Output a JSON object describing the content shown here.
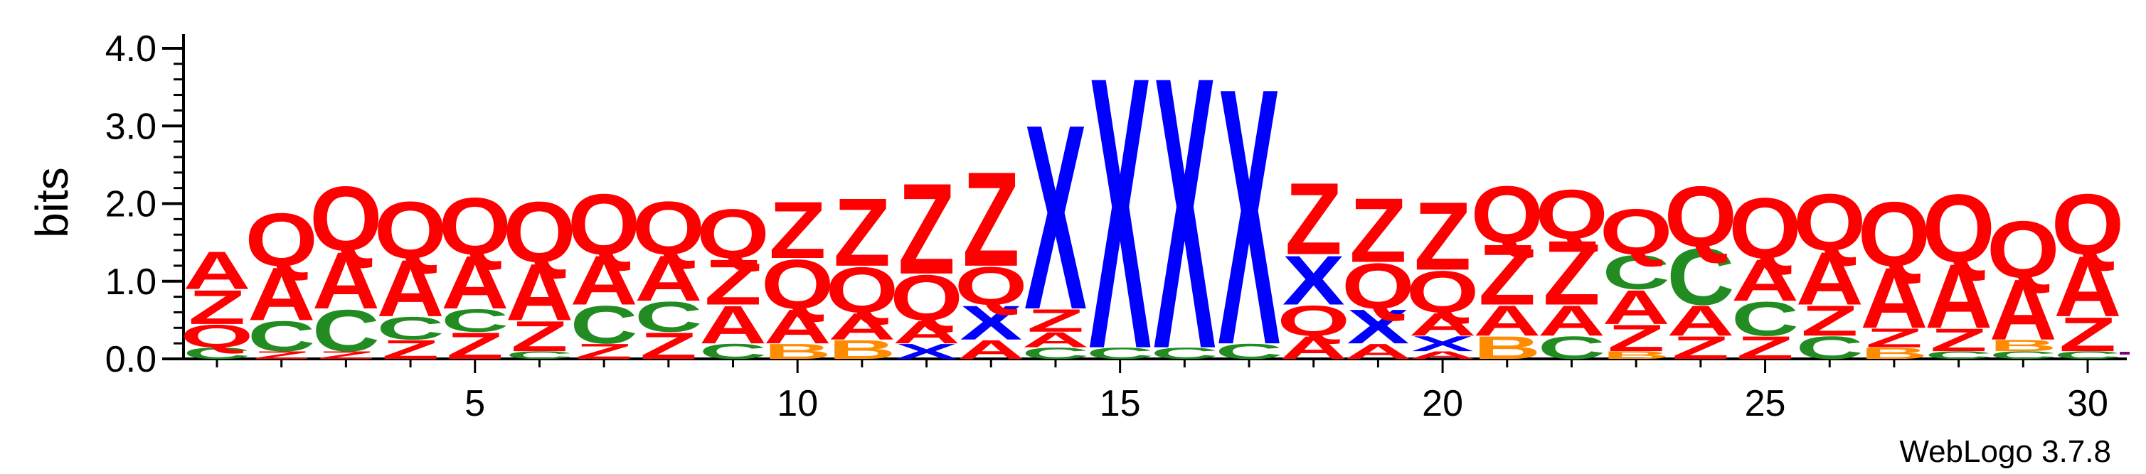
{
  "chart_data": {
    "type": "sequence-logo",
    "ylabel": "bits",
    "ylim": [
      0,
      4.0
    ],
    "y_ticks": [
      "0.0",
      "1.0",
      "2.0",
      "3.0",
      "4.0"
    ],
    "x_ticks": [
      5,
      10,
      15,
      20,
      25,
      30
    ],
    "positions": [
      1,
      30
    ],
    "footer": "WebLogo 3.7.8",
    "colors": {
      "A": "#ff0000",
      "Q": "#ff0000",
      "Z": "#ff0000",
      "C": "#228b22",
      "X": "#0000ff",
      "B": "#ff8c00",
      "other": "#800080"
    },
    "stacks": [
      {
        "pos": 1,
        "letters": [
          [
            "C",
            0.15
          ],
          [
            "Q",
            0.3
          ],
          [
            "Z",
            0.45
          ],
          [
            "A",
            0.5
          ]
        ]
      },
      {
        "pos": 2,
        "letters": [
          [
            "Z",
            0.1
          ],
          [
            "C",
            0.4
          ],
          [
            "A",
            0.7
          ],
          [
            "Q",
            0.7
          ]
        ]
      },
      {
        "pos": 3,
        "letters": [
          [
            "Z",
            0.1
          ],
          [
            "C",
            0.55
          ],
          [
            "A",
            0.75
          ],
          [
            "Q",
            0.85
          ]
        ]
      },
      {
        "pos": 4,
        "letters": [
          [
            "Z",
            0.25
          ],
          [
            "C",
            0.3
          ],
          [
            "A",
            0.75
          ],
          [
            "Q",
            0.75
          ]
        ]
      },
      {
        "pos": 5,
        "letters": [
          [
            "Z",
            0.35
          ],
          [
            "C",
            0.3
          ],
          [
            "A",
            0.7
          ],
          [
            "Q",
            0.75
          ]
        ]
      },
      {
        "pos": 6,
        "letters": [
          [
            "C",
            0.1
          ],
          [
            "Z",
            0.4
          ],
          [
            "A",
            0.75
          ],
          [
            "Q",
            0.8
          ]
        ]
      },
      {
        "pos": 7,
        "letters": [
          [
            "Z",
            0.2
          ],
          [
            "C",
            0.5
          ],
          [
            "A",
            0.65
          ],
          [
            "Q",
            0.8
          ]
        ]
      },
      {
        "pos": 8,
        "letters": [
          [
            "Z",
            0.35
          ],
          [
            "C",
            0.4
          ],
          [
            "A",
            0.6
          ],
          [
            "Q",
            0.7
          ]
        ]
      },
      {
        "pos": 9,
        "letters": [
          [
            "C",
            0.2
          ],
          [
            "A",
            0.5
          ],
          [
            "Z",
            0.6
          ],
          [
            "Q",
            0.65
          ]
        ]
      },
      {
        "pos": 10,
        "letters": [
          [
            "B",
            0.2
          ],
          [
            "A",
            0.45
          ],
          [
            "Q",
            0.65
          ],
          [
            "Z",
            0.75
          ]
        ]
      },
      {
        "pos": 11,
        "letters": [
          [
            "B",
            0.25
          ],
          [
            "A",
            0.35
          ],
          [
            "Q",
            0.6
          ],
          [
            "Z",
            0.9
          ]
        ]
      },
      {
        "pos": 12,
        "letters": [
          [
            "X",
            0.2
          ],
          [
            "A",
            0.3
          ],
          [
            "Q",
            0.6
          ],
          [
            "Z",
            1.2
          ]
        ]
      },
      {
        "pos": 13,
        "letters": [
          [
            "A",
            0.25
          ],
          [
            "X",
            0.45
          ],
          [
            "Q",
            0.5
          ],
          [
            "Z",
            1.25
          ]
        ]
      },
      {
        "pos": 14,
        "letters": [
          [
            "C",
            0.15
          ],
          [
            "A",
            0.2
          ],
          [
            "Z",
            0.3
          ],
          [
            "X",
            2.45
          ]
        ]
      },
      {
        "pos": 15,
        "letters": [
          [
            "C",
            0.15
          ],
          [
            "X",
            3.6
          ]
        ]
      },
      {
        "pos": 16,
        "letters": [
          [
            "C",
            0.15
          ],
          [
            "X",
            3.6
          ]
        ]
      },
      {
        "pos": 17,
        "letters": [
          [
            "C",
            0.2
          ],
          [
            "X",
            3.4
          ]
        ]
      },
      {
        "pos": 18,
        "letters": [
          [
            "A",
            0.3
          ],
          [
            "Q",
            0.4
          ],
          [
            "X",
            0.65
          ],
          [
            "Z",
            0.95
          ]
        ]
      },
      {
        "pos": 19,
        "letters": [
          [
            "A",
            0.2
          ],
          [
            "X",
            0.45
          ],
          [
            "Q",
            0.6
          ],
          [
            "Z",
            0.85
          ]
        ]
      },
      {
        "pos": 20,
        "letters": [
          [
            "A",
            0.1
          ],
          [
            "X",
            0.2
          ],
          [
            "A",
            0.3
          ],
          [
            "Q",
            0.55
          ],
          [
            "Z",
            0.9
          ]
        ]
      },
      {
        "pos": 21,
        "letters": [
          [
            "B",
            0.3
          ],
          [
            "A",
            0.4
          ],
          [
            "Z",
            0.8
          ],
          [
            "Q",
            0.75
          ]
        ]
      },
      {
        "pos": 22,
        "letters": [
          [
            "C",
            0.3
          ],
          [
            "A",
            0.4
          ],
          [
            "Z",
            0.85
          ],
          [
            "Q",
            0.65
          ]
        ]
      },
      {
        "pos": 23,
        "letters": [
          [
            "B",
            0.1
          ],
          [
            "Z",
            0.35
          ],
          [
            "A",
            0.45
          ],
          [
            "C",
            0.45
          ],
          [
            "Q",
            0.6
          ]
        ]
      },
      {
        "pos": 24,
        "letters": [
          [
            "Z",
            0.3
          ],
          [
            "A",
            0.4
          ],
          [
            "C",
            0.75
          ],
          [
            "Q",
            0.8
          ]
        ]
      },
      {
        "pos": 25,
        "letters": [
          [
            "Z",
            0.3
          ],
          [
            "C",
            0.45
          ],
          [
            "A",
            0.55
          ],
          [
            "Q",
            0.8
          ]
        ]
      },
      {
        "pos": 26,
        "letters": [
          [
            "C",
            0.3
          ],
          [
            "Z",
            0.4
          ],
          [
            "A",
            0.7
          ],
          [
            "Q",
            0.75
          ]
        ]
      },
      {
        "pos": 27,
        "letters": [
          [
            "B",
            0.15
          ],
          [
            "Z",
            0.25
          ],
          [
            "A",
            0.8
          ],
          [
            "Q",
            0.85
          ]
        ]
      },
      {
        "pos": 28,
        "letters": [
          [
            "C",
            0.1
          ],
          [
            "Z",
            0.3
          ],
          [
            "A",
            0.85
          ],
          [
            "Q",
            0.9
          ]
        ]
      },
      {
        "pos": 29,
        "letters": [
          [
            "C",
            0.1
          ],
          [
            "B",
            0.15
          ],
          [
            "A",
            0.8
          ],
          [
            "Q",
            0.75
          ]
        ]
      },
      {
        "pos": 30,
        "letters": [
          [
            "C",
            0.1
          ],
          [
            "Z",
            0.45
          ],
          [
            "A",
            0.8
          ],
          [
            "Q",
            0.8
          ]
        ]
      }
    ]
  }
}
